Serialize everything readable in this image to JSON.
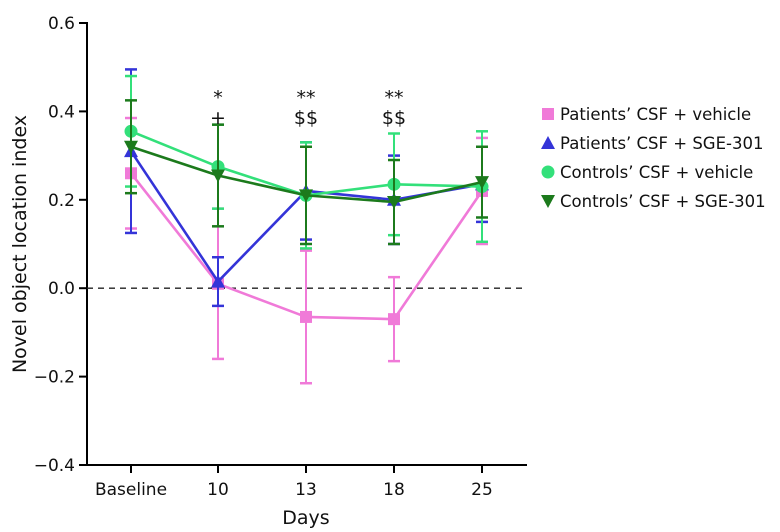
{
  "chart_data": {
    "type": "line",
    "title": "",
    "xlabel": "Days",
    "ylabel": "Novel object location index",
    "categories": [
      "Baseline",
      "10",
      "13",
      "18",
      "25"
    ],
    "ylim": [
      -0.4,
      0.6
    ],
    "yticks": [
      "0.6",
      "0.4",
      "0.2",
      "0.0",
      "−0.2",
      "−0.4"
    ],
    "ytick_values": [
      0.6,
      0.4,
      0.2,
      0.0,
      -0.2,
      -0.4
    ],
    "reference_line": {
      "y": 0.0,
      "style": "dashed"
    },
    "grid": false,
    "legend_position": "right",
    "series": [
      {
        "name": "Patients’ CSF + vehicle",
        "color": "#f07ad8",
        "marker": "square",
        "values": [
          0.26,
          0.01,
          -0.065,
          -0.07,
          0.22
        ],
        "error": [
          0.125,
          0.17,
          0.15,
          0.095,
          0.12
        ]
      },
      {
        "name": "Patients’ CSF + SGE-301",
        "color": "#3434d8",
        "marker": "triangle-up",
        "values": [
          0.31,
          0.015,
          0.22,
          0.2,
          0.235
        ],
        "error": [
          0.185,
          0.055,
          0.11,
          0.1,
          0.085
        ]
      },
      {
        "name": "Controls’ CSF + vehicle",
        "color": "#33e07a",
        "marker": "circle",
        "values": [
          0.355,
          0.275,
          0.21,
          0.235,
          0.23
        ],
        "error": [
          0.125,
          0.095,
          0.12,
          0.115,
          0.125
        ]
      },
      {
        "name": "Controls’ CSF + SGE-301",
        "color": "#1c7a1c",
        "marker": "triangle-down",
        "values": [
          0.32,
          0.255,
          0.21,
          0.195,
          0.24
        ],
        "error": [
          0.105,
          0.115,
          0.11,
          0.095,
          0.08
        ]
      }
    ],
    "annotations": [
      {
        "category": "10",
        "lines": [
          "*",
          "+"
        ]
      },
      {
        "category": "13",
        "lines": [
          "**",
          "$$"
        ]
      },
      {
        "category": "18",
        "lines": [
          "**",
          "$$"
        ]
      }
    ]
  }
}
